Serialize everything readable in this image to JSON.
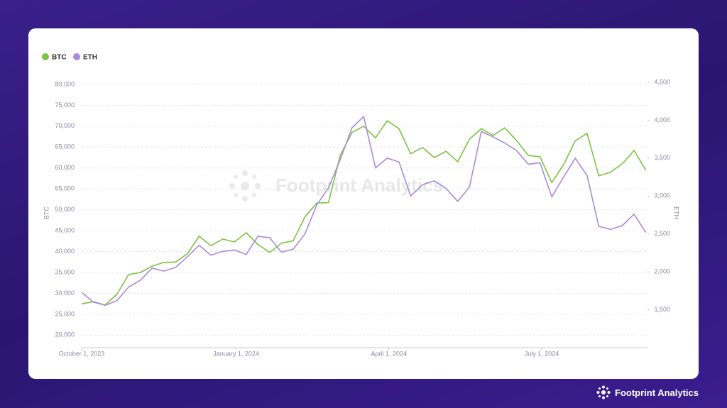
{
  "chart_data": {
    "type": "line",
    "x": [
      "2023-10-01",
      "2023-10-08",
      "2023-10-15",
      "2023-10-22",
      "2023-10-29",
      "2023-11-05",
      "2023-11-12",
      "2023-11-19",
      "2023-11-26",
      "2023-12-03",
      "2023-12-10",
      "2023-12-17",
      "2023-12-24",
      "2023-12-31",
      "2024-01-07",
      "2024-01-14",
      "2024-01-21",
      "2024-01-28",
      "2024-02-04",
      "2024-02-11",
      "2024-02-18",
      "2024-02-25",
      "2024-03-03",
      "2024-03-10",
      "2024-03-17",
      "2024-03-24",
      "2024-03-31",
      "2024-04-07",
      "2024-04-14",
      "2024-04-21",
      "2024-04-28",
      "2024-05-05",
      "2024-05-12",
      "2024-05-19",
      "2024-05-26",
      "2024-06-02",
      "2024-06-09",
      "2024-06-16",
      "2024-06-23",
      "2024-06-30",
      "2024-07-07",
      "2024-07-14",
      "2024-07-21",
      "2024-07-28",
      "2024-08-04",
      "2024-08-11",
      "2024-08-18",
      "2024-08-25",
      "2024-09-01"
    ],
    "series": [
      {
        "name": "BTC",
        "color": "#7dc242",
        "values": [
          27500,
          28000,
          27200,
          29800,
          34500,
          35000,
          36500,
          37400,
          37500,
          39500,
          43700,
          41400,
          43000,
          42300,
          44500,
          41700,
          39800,
          42000,
          42600,
          48300,
          51600,
          51700,
          63000,
          68500,
          70000,
          67200,
          71300,
          69400,
          63400,
          64900,
          62500,
          64000,
          61500,
          66900,
          69400,
          67800,
          69600,
          66600,
          63000,
          62700,
          56500,
          60800,
          66500,
          68300,
          58100,
          59000,
          61000,
          64200,
          59500
        ]
      },
      {
        "name": "ETH",
        "color": "#a98bd6",
        "axis": "y2",
        "values": [
          1730,
          1600,
          1560,
          1620,
          1800,
          1890,
          2050,
          2010,
          2060,
          2200,
          2350,
          2220,
          2270,
          2290,
          2230,
          2470,
          2450,
          2260,
          2300,
          2500,
          2880,
          3110,
          3480,
          3900,
          4050,
          3370,
          3500,
          3450,
          3000,
          3150,
          3200,
          3100,
          2930,
          3120,
          3850,
          3780,
          3700,
          3600,
          3420,
          3440,
          2990,
          3250,
          3500,
          3270,
          2600,
          2560,
          2610,
          2760,
          2520
        ]
      }
    ],
    "xlim": [
      "2023-10-01",
      "2024-09-02"
    ],
    "xticks": [
      {
        "value": "2023-10-01",
        "label": "October 1, 2023"
      },
      {
        "value": "2024-01-01",
        "label": "January 1, 2024"
      },
      {
        "value": "2024-04-01",
        "label": "April 1, 2024"
      },
      {
        "value": "2024-07-01",
        "label": "July 1, 2024"
      }
    ],
    "ylim": [
      17000,
      80500
    ],
    "yticks": [
      {
        "value": 20000,
        "label": "20,000"
      },
      {
        "value": 25000,
        "label": "25,000"
      },
      {
        "value": 30000,
        "label": "30,000"
      },
      {
        "value": 35000,
        "label": "35,000"
      },
      {
        "value": 40000,
        "label": "40,000"
      },
      {
        "value": 45000,
        "label": "45,000"
      },
      {
        "value": 50000,
        "label": "50,000"
      },
      {
        "value": 55000,
        "label": "55,000"
      },
      {
        "value": 60000,
        "label": "60,000"
      },
      {
        "value": 65000,
        "label": "65,000"
      },
      {
        "value": 70000,
        "label": "70,000"
      },
      {
        "value": 75000,
        "label": "75,000"
      },
      {
        "value": 80000,
        "label": "80,000"
      }
    ],
    "y2lim": [
      1000,
      4500
    ],
    "y2ticks": [
      {
        "value": 1500,
        "label": "1,500"
      },
      {
        "value": 2000,
        "label": "2,000"
      },
      {
        "value": 2500,
        "label": "2,500"
      },
      {
        "value": 3000,
        "label": "3,000"
      },
      {
        "value": 3500,
        "label": "3,500"
      },
      {
        "value": 4000,
        "label": "4,000"
      },
      {
        "value": 4500,
        "label": "4,500"
      }
    ],
    "ylabel": "BTC",
    "y2label": "ETH",
    "grid": true,
    "watermark": "Footprint Analytics"
  },
  "brand": "Footprint Analytics"
}
